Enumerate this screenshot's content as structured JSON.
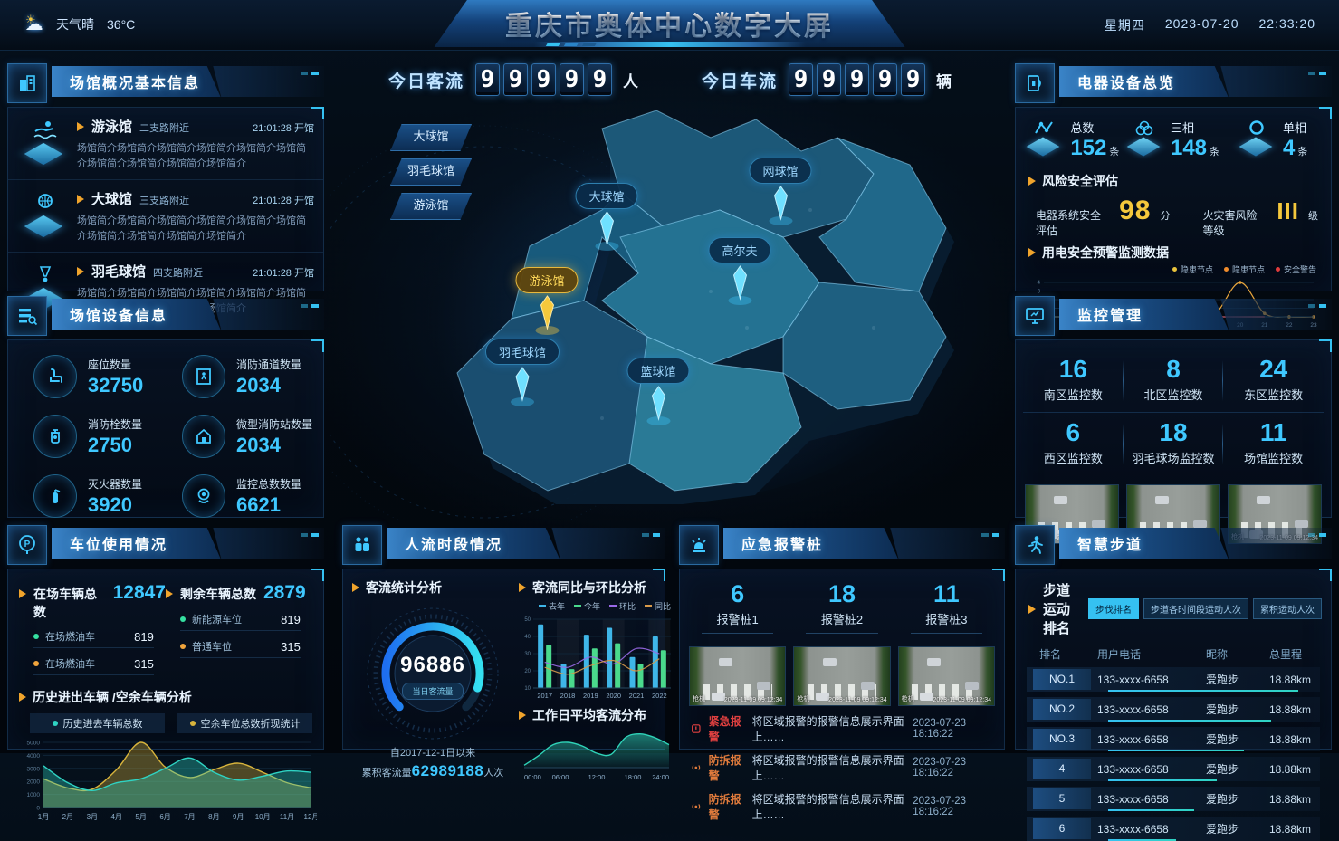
{
  "topbar": {
    "title": "重庆市奥体中心数字大屏",
    "weather_condition": "天气晴",
    "temperature": "36°C",
    "weekday": "星期四",
    "date": "2023-07-20",
    "time": "22:33:20"
  },
  "center": {
    "flow_stats": [
      {
        "label": "今日客流",
        "digits": [
          "9",
          "9",
          "9",
          "9",
          "9"
        ],
        "unit": "人"
      },
      {
        "label": "今日车流",
        "digits": [
          "9",
          "9",
          "9",
          "9",
          "9"
        ],
        "unit": "辆"
      }
    ],
    "map_buttons": [
      "大球馆",
      "羽毛球馆",
      "游泳馆"
    ],
    "map_pins": [
      {
        "label": "大球馆"
      },
      {
        "label": "网球馆"
      },
      {
        "label": "高尔夫"
      },
      {
        "label": "游泳馆"
      },
      {
        "label": "羽毛球馆"
      },
      {
        "label": "篮球馆"
      }
    ]
  },
  "venue_overview": {
    "title": "场馆概况基本信息",
    "items": [
      {
        "name": "游泳馆",
        "location": "二支路附近",
        "time": "21:01:28",
        "status": "开馆",
        "desc": "场馆简介场馆简介场馆简介场馆简介场馆简介场馆简介场馆简介场馆简介场馆简介场馆简介"
      },
      {
        "name": "大球馆",
        "location": "三支路附近",
        "time": "21:01:28",
        "status": "开馆",
        "desc": "场馆简介场馆简介场馆简介场馆简介场馆简介场馆简介场馆简介场馆简介场馆简介场馆简介"
      },
      {
        "name": "羽毛球馆",
        "location": "四支路附近",
        "time": "21:01:28",
        "status": "开馆",
        "desc": "场馆简介场馆简介场馆简介场馆简介场馆简介场馆简介场馆简介场馆简介场馆简介场馆简介"
      }
    ]
  },
  "venue_equipment": {
    "title": "场馆设备信息",
    "stats": [
      {
        "label": "座位数量",
        "value": "32750"
      },
      {
        "label": "消防通道数量",
        "value": "2034"
      },
      {
        "label": "消防栓数量",
        "value": "2750"
      },
      {
        "label": "微型消防站数量",
        "value": "2034"
      },
      {
        "label": "灭火器数量",
        "value": "3920"
      },
      {
        "label": "监控总数数量",
        "value": "6621"
      }
    ]
  },
  "parking": {
    "title": "车位使用情况",
    "totals": [
      {
        "label": "在场车辆总数",
        "value": "12847",
        "subs": [
          {
            "label": "在场燃油车",
            "value": "819",
            "dot": "#35e0a1"
          },
          {
            "label": "在场燃油车",
            "value": "315",
            "dot": "#f0a43c"
          }
        ]
      },
      {
        "label": "剩余车辆总数",
        "value": "2879",
        "subs": [
          {
            "label": "新能源车位",
            "value": "819",
            "dot": "#35e0a1"
          },
          {
            "label": "普通车位",
            "value": "315",
            "dot": "#f0a43c"
          }
        ]
      }
    ],
    "chart_title": "历史进出车辆 /空余车辆分析"
  },
  "electric": {
    "title": "电器设备总览",
    "stats": [
      {
        "label": "总数",
        "value": "152",
        "unit": "条"
      },
      {
        "label": "三相",
        "value": "148",
        "unit": "条"
      },
      {
        "label": "单相",
        "value": "4",
        "unit": "条"
      }
    ],
    "risk_title": "风险安全评估",
    "risk_items": [
      {
        "label": "电器系统安全评估",
        "value": "98",
        "unit": "分"
      },
      {
        "label": "火灾害风险等级",
        "value": "III",
        "unit": "级"
      }
    ],
    "monitor_title": "用电安全预警监测数据"
  },
  "monitoring": {
    "title": "监控管理",
    "stats": [
      {
        "value": "16",
        "label": "南区监控数"
      },
      {
        "value": "8",
        "label": "北区监控数"
      },
      {
        "value": "24",
        "label": "东区监控数"
      },
      {
        "value": "6",
        "label": "西区监控数"
      },
      {
        "value": "18",
        "label": "羽毛球场监控数"
      },
      {
        "value": "11",
        "label": "场馆监控数"
      }
    ],
    "camera_timestamp": "2023-11-09 09:12:34",
    "camera_tag": "枪机"
  },
  "people_flow": {
    "title": "人流时段情况",
    "stat_title": "客流统计分析",
    "gauge": {
      "value": "96886",
      "label": "当日客流量",
      "since": "自2017-12-1日以来",
      "total_prefix": "累积客流量",
      "total": "62989188",
      "total_unit": "人次"
    },
    "compare_title": "客流同比与环比分析",
    "workday_title": "工作日平均客流分布"
  },
  "alarm": {
    "title": "应急报警桩",
    "piles": [
      {
        "value": "6",
        "label": "报警桩1"
      },
      {
        "value": "18",
        "label": "报警桩2"
      },
      {
        "value": "11",
        "label": "报警桩3"
      }
    ],
    "camera_timestamp": "2023-11-09 09:12:34",
    "camera_tag": "枪机",
    "alerts": [
      {
        "type": "紧急报警",
        "severity": "red",
        "text": "将区域报警的报警信息展示界面上……",
        "ts": "2023-07-23 18:16:22"
      },
      {
        "type": "防拆报警",
        "severity": "orange",
        "text": "将区域报警的报警信息展示界面上……",
        "ts": "2023-07-23 18:16:22"
      },
      {
        "type": "防拆报警",
        "severity": "orange",
        "text": "将区域报警的报警信息展示界面上……",
        "ts": "2023-07-23 18:16:22"
      }
    ]
  },
  "trail": {
    "title": "智慧步道",
    "rank_title": "步道运动排名",
    "tabs": [
      "步伐排名",
      "步道各时间段运动人次",
      "累积运动人次"
    ],
    "columns": [
      "排名",
      "用户电话",
      "昵称",
      "总里程"
    ],
    "rows": [
      {
        "rank": "NO.1",
        "phone": "133-xxxx-6658",
        "nick": "爱跑步",
        "dist": "18.88km"
      },
      {
        "rank": "NO.2",
        "phone": "133-xxxx-6658",
        "nick": "爱跑步",
        "dist": "18.88km"
      },
      {
        "rank": "NO.3",
        "phone": "133-xxxx-6658",
        "nick": "爱跑步",
        "dist": "18.88km"
      },
      {
        "rank": "4",
        "phone": "133-xxxx-6658",
        "nick": "爱跑步",
        "dist": "18.88km"
      },
      {
        "rank": "5",
        "phone": "133-xxxx-6658",
        "nick": "爱跑步",
        "dist": "18.88km"
      },
      {
        "rank": "6",
        "phone": "133-xxxx-6658",
        "nick": "爱跑步",
        "dist": "18.88km"
      }
    ]
  },
  "chart_data": [
    {
      "id": "parking_history",
      "type": "area",
      "title": "历史进出车辆 /空余车辆分析",
      "x": [
        "1月",
        "2月",
        "3月",
        "4月",
        "5月",
        "6月",
        "7月",
        "8月",
        "9月",
        "10月",
        "11月",
        "12月"
      ],
      "series": [
        {
          "name": "历史进去车辆总数",
          "color": "#2fd3c3",
          "values": [
            3200,
            1900,
            1300,
            1900,
            2200,
            3000,
            3800,
            2700,
            2100,
            2400,
            2800,
            2700
          ]
        },
        {
          "name": "空余车位总数折现统计",
          "color": "#d8b43c",
          "values": [
            2200,
            1500,
            1400,
            2900,
            5000,
            3100,
            2300,
            2900,
            3400,
            2700,
            1900,
            1500
          ]
        }
      ],
      "ylim": [
        0,
        5000
      ],
      "yticks": [
        0,
        1000,
        2000,
        3000,
        4000,
        5000
      ],
      "legend_position": "top"
    },
    {
      "id": "electric_monitor",
      "type": "line",
      "title": "用电安全预警监测数据",
      "x": [
        "12",
        "13",
        "14",
        "15",
        "16",
        "17",
        "18",
        "19",
        "20",
        "21",
        "22",
        "23"
      ],
      "series": [
        {
          "name": "隐患节点",
          "color": "#e8a53c",
          "values": [
            0,
            0,
            0,
            0,
            0,
            0,
            0,
            0.4,
            4,
            0.4,
            0,
            0
          ]
        }
      ],
      "alert_segment": {
        "from": "19",
        "to": "21",
        "color": "#d23030"
      },
      "legend": [
        {
          "label": "隐患节点",
          "color": "#e8c33c"
        },
        {
          "label": "隐患节点",
          "color": "#f08c2c"
        },
        {
          "label": "安全警告",
          "color": "#e03c3c"
        }
      ],
      "ylim": [
        0,
        4
      ],
      "yticks": [
        0,
        1,
        2,
        3,
        4
      ]
    },
    {
      "id": "flow_compare",
      "type": "bar",
      "title": "客流同比与环比分析",
      "x": [
        "2017",
        "2018",
        "2019",
        "2020",
        "2021",
        "2022"
      ],
      "series": [
        {
          "name": "去年",
          "kind": "bar",
          "color": "#3fb6e8",
          "values": [
            47,
            24,
            41,
            45,
            28,
            40
          ]
        },
        {
          "name": "今年",
          "kind": "bar",
          "color": "#4ad98c",
          "values": [
            35,
            21,
            33,
            36,
            24,
            32
          ]
        },
        {
          "name": "环比",
          "kind": "line",
          "color": "#9a6ae8",
          "values": [
            25,
            22,
            28,
            24,
            33,
            30
          ]
        },
        {
          "name": "同比",
          "kind": "line",
          "color": "#d89a4a",
          "values": [
            22,
            18,
            23,
            26,
            20,
            27
          ]
        }
      ],
      "ylim": [
        10,
        50
      ],
      "yticks": [
        10,
        20,
        30,
        40,
        50
      ],
      "legend_position": "top-right"
    },
    {
      "id": "workday_flow",
      "type": "area",
      "title": "工作日平均客流分布",
      "x": [
        "00:00",
        "06:00",
        "12:00",
        "18:00",
        "24:00"
      ],
      "series": [
        {
          "name": "平均客流",
          "color": "#2fd3b8",
          "values": [
            4,
            20,
            38,
            42,
            36,
            24,
            22,
            50,
            56,
            50,
            38
          ]
        }
      ],
      "ylim": [
        0,
        60
      ]
    }
  ]
}
